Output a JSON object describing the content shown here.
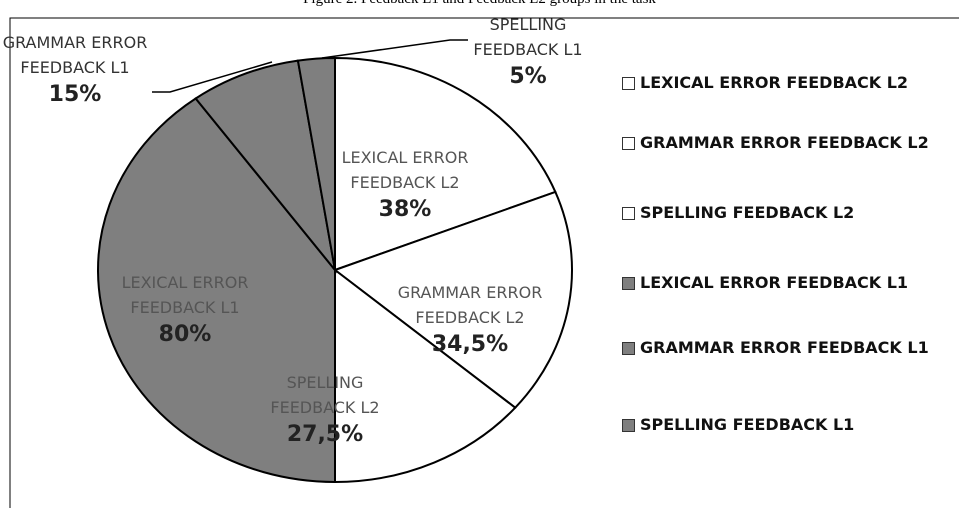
{
  "chart_data": {
    "type": "pie",
    "title": "Figure 2. Feedback L1 and Feedback L2 groups in the task",
    "categories": [
      "LEXICAL ERROR FEEDBACK L2",
      "GRAMMAR ERROR FEEDBACK L2",
      "SPELLING FEEDBACK L2",
      "LEXICAL ERROR FEEDBACK L1",
      "GRAMMAR ERROR FEEDBACK L1",
      "SPELLING FEEDBACK L1"
    ],
    "values": [
      38,
      34.5,
      27.5,
      80,
      15,
      5
    ],
    "value_labels": [
      "38%",
      "34,5%",
      "27,5%",
      "80%",
      "15%",
      "5%"
    ],
    "colors": [
      "#ffffff",
      "#ffffff",
      "#ffffff",
      "#7f7f7f",
      "#7f7f7f",
      "#7f7f7f"
    ]
  }
}
